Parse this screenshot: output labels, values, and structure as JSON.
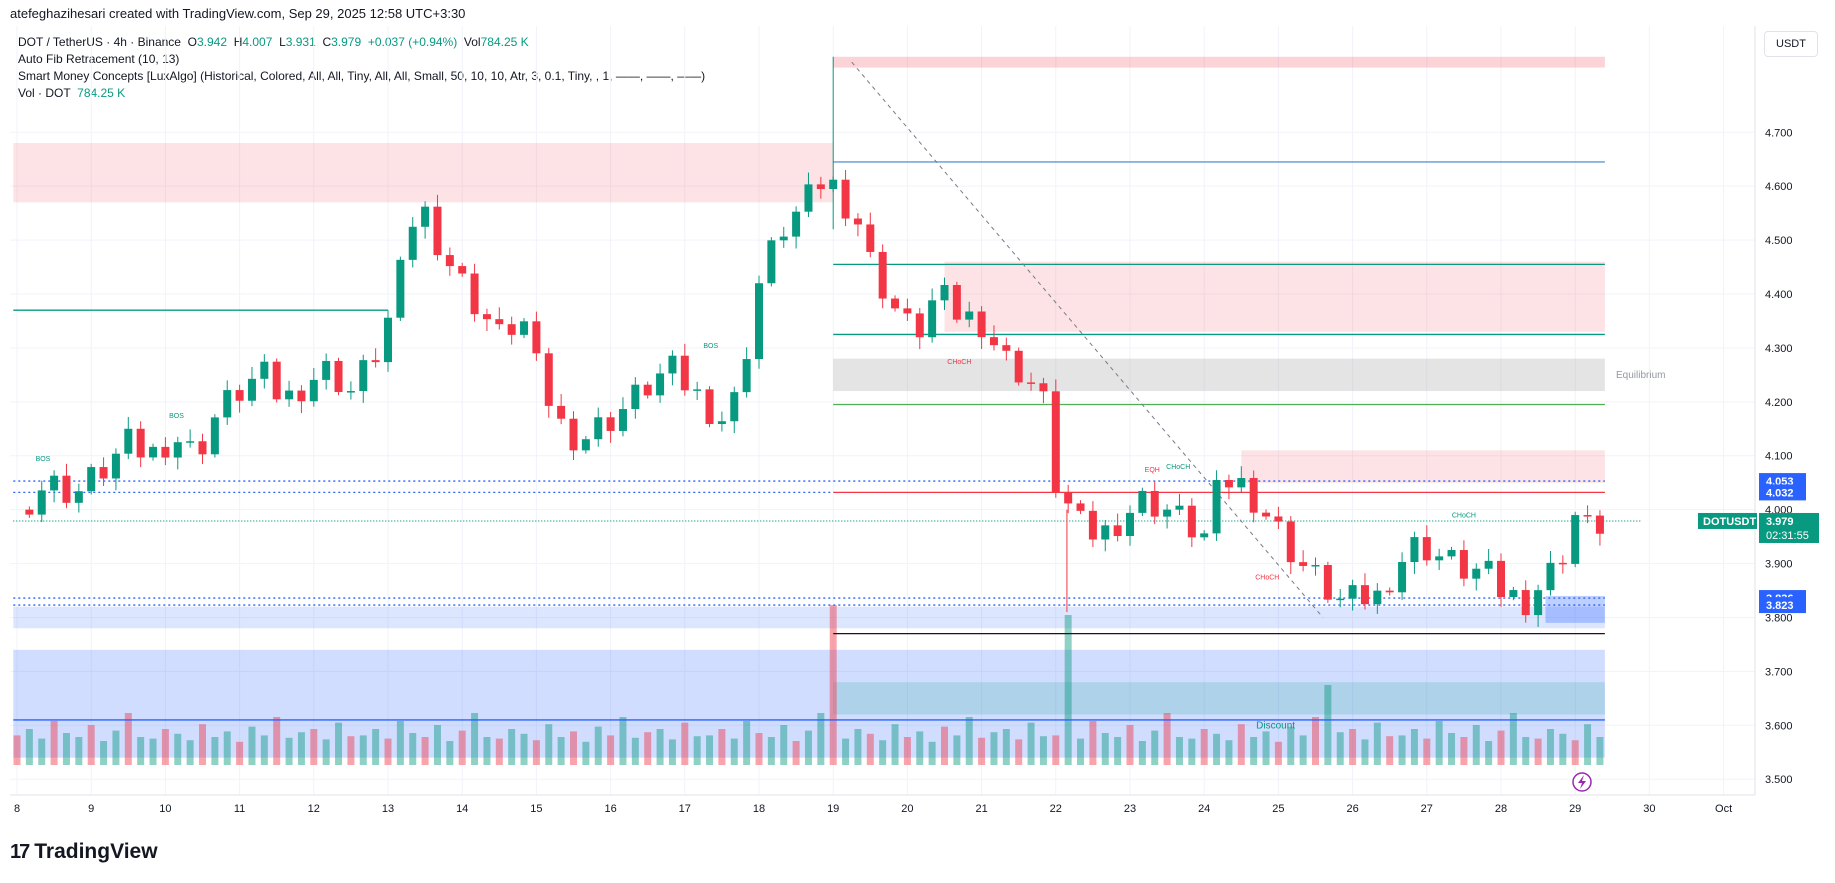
{
  "header": {
    "creator": "atefeghazihesari created with TradingView.com, Sep 29, 2025 12:58 UTC+3:30",
    "symbol": "DOT / TetherUS · 4h · Binance",
    "ohlc": {
      "o_label": "O",
      "o": "3.942",
      "h_label": "H",
      "h": "4.007",
      "l_label": "L",
      "l": "3.931",
      "c_label": "C",
      "c": "3.979",
      "change": "+0.037 (+0.94%)",
      "vol_label": "Vol",
      "vol": "784.25 K"
    },
    "indicators": [
      "Auto Fib Retracement (10, 13)",
      "Smart Money Concepts [LuxAlgo] (Historical, Colored, All, All, Tiny, All, All, Small, 50, 10, 10, Atr, 3, 0.1, Tiny, , 1, ——, ——, ——)"
    ],
    "volume_indicator": {
      "label": "Vol · DOT",
      "value": "784.25 K"
    }
  },
  "axis": {
    "currency": "USDT"
  },
  "branding": {
    "logo": "17",
    "name": "TradingView"
  },
  "colors": {
    "up": "#089981",
    "down": "#f23645",
    "blue": "#2962ff",
    "grid": "#f0f3fa"
  },
  "chart_data": {
    "type": "candlestick",
    "ylim": [
      3.48,
      4.86
    ],
    "y_ticks": [
      "3.500",
      "3.600",
      "3.700",
      "3.800",
      "3.900",
      "4.000",
      "4.100",
      "4.200",
      "4.300",
      "4.400",
      "4.500",
      "4.600",
      "4.700"
    ],
    "x_ticks": [
      {
        "label": "8",
        "day": 8
      },
      {
        "label": "9",
        "day": 9
      },
      {
        "label": "10",
        "day": 10
      },
      {
        "label": "11",
        "day": 11
      },
      {
        "label": "12",
        "day": 12
      },
      {
        "label": "13",
        "day": 13
      },
      {
        "label": "14",
        "day": 14
      },
      {
        "label": "15",
        "day": 15
      },
      {
        "label": "16",
        "day": 16
      },
      {
        "label": "17",
        "day": 17
      },
      {
        "label": "18",
        "day": 18
      },
      {
        "label": "19",
        "day": 19
      },
      {
        "label": "20",
        "day": 20
      },
      {
        "label": "21",
        "day": 21
      },
      {
        "label": "22",
        "day": 22
      },
      {
        "label": "23",
        "day": 23
      },
      {
        "label": "24",
        "day": 24
      },
      {
        "label": "25",
        "day": 25
      },
      {
        "label": "26",
        "day": 26
      },
      {
        "label": "27",
        "day": 27
      },
      {
        "label": "28",
        "day": 28
      },
      {
        "label": "29",
        "day": 29
      },
      {
        "label": "30",
        "day": 30
      },
      {
        "label": "Oct",
        "day": 31
      }
    ],
    "close_path": [
      [
        8.0,
        4.0
      ],
      [
        8.4,
        4.05
      ],
      [
        8.8,
        4.03
      ],
      [
        9.2,
        4.08
      ],
      [
        9.5,
        4.12
      ],
      [
        9.8,
        4.1
      ],
      [
        10.1,
        4.14
      ],
      [
        10.4,
        4.1
      ],
      [
        10.7,
        4.18
      ],
      [
        11.0,
        4.22
      ],
      [
        11.3,
        4.25
      ],
      [
        11.6,
        4.2
      ],
      [
        11.9,
        4.24
      ],
      [
        12.2,
        4.26
      ],
      [
        12.5,
        4.22
      ],
      [
        12.8,
        4.28
      ],
      [
        13.0,
        4.35
      ],
      [
        13.2,
        4.45
      ],
      [
        13.4,
        4.58
      ],
      [
        13.6,
        4.52
      ],
      [
        13.9,
        4.44
      ],
      [
        14.2,
        4.38
      ],
      [
        14.5,
        4.32
      ],
      [
        14.8,
        4.36
      ],
      [
        15.0,
        4.26
      ],
      [
        15.3,
        4.16
      ],
      [
        15.6,
        4.13
      ],
      [
        15.9,
        4.16
      ],
      [
        16.2,
        4.19
      ],
      [
        16.5,
        4.23
      ],
      [
        16.8,
        4.26
      ],
      [
        17.1,
        4.22
      ],
      [
        17.4,
        4.18
      ],
      [
        17.6,
        4.16
      ],
      [
        17.8,
        4.28
      ],
      [
        18.0,
        4.42
      ],
      [
        18.3,
        4.52
      ],
      [
        18.6,
        4.56
      ],
      [
        18.9,
        4.62
      ],
      [
        19.1,
        4.58
      ],
      [
        19.3,
        4.55
      ],
      [
        19.5,
        4.46
      ],
      [
        19.8,
        4.38
      ],
      [
        20.1,
        4.32
      ],
      [
        20.4,
        4.4
      ],
      [
        20.7,
        4.36
      ],
      [
        21.0,
        4.35
      ],
      [
        21.3,
        4.28
      ],
      [
        21.6,
        4.25
      ],
      [
        21.9,
        4.18
      ],
      [
        22.0,
        4.05
      ],
      [
        22.3,
        3.97
      ],
      [
        22.6,
        3.95
      ],
      [
        22.9,
        3.99
      ],
      [
        23.2,
        4.02
      ],
      [
        23.5,
        4.0
      ],
      [
        23.8,
        3.97
      ],
      [
        24.0,
        3.95
      ],
      [
        24.2,
        4.04
      ],
      [
        24.4,
        4.06
      ],
      [
        24.7,
        4.02
      ],
      [
        25.0,
        3.96
      ],
      [
        25.3,
        3.9
      ],
      [
        25.6,
        3.86
      ],
      [
        25.9,
        3.82
      ],
      [
        26.1,
        3.84
      ],
      [
        26.3,
        3.83
      ],
      [
        26.6,
        3.9
      ],
      [
        26.9,
        3.94
      ],
      [
        27.2,
        3.91
      ],
      [
        27.5,
        3.89
      ],
      [
        27.8,
        3.88
      ],
      [
        28.0,
        3.85
      ],
      [
        28.3,
        3.83
      ],
      [
        28.6,
        3.87
      ],
      [
        28.8,
        3.91
      ],
      [
        29.0,
        3.99
      ],
      [
        29.2,
        3.96
      ],
      [
        29.4,
        3.98
      ]
    ],
    "volume_ylim": [
      0,
      1
    ],
    "volume_pattern": [
      0.22,
      0.3,
      0.18,
      0.4,
      0.25,
      0.2,
      0.35,
      0.15,
      0.28,
      0.5,
      0.2,
      0.18,
      0.3,
      0.24,
      0.16,
      0.36,
      0.2,
      0.27,
      0.14,
      0.33,
      0.22,
      0.45,
      0.19,
      0.26,
      0.3,
      0.17,
      0.38,
      0.21
    ],
    "zones": [
      {
        "name": "supply-top",
        "y0": 4.84,
        "y1": 4.82,
        "x0": 19.0,
        "x1": 29.4,
        "color": "#f23645",
        "opacity": 0.22
      },
      {
        "name": "supply-left",
        "y0": 4.68,
        "y1": 4.57,
        "x0": 7.95,
        "x1": 19.0,
        "color": "#f23645",
        "opacity": 0.14
      },
      {
        "name": "supply-mid",
        "y0": 4.46,
        "y1": 4.33,
        "x0": 20.5,
        "x1": 29.4,
        "color": "#f23645",
        "opacity": 0.14
      },
      {
        "name": "equilibrium",
        "y0": 4.28,
        "y1": 4.22,
        "x0": 19.0,
        "x1": 29.4,
        "color": "#9e9e9e",
        "opacity": 0.28
      },
      {
        "name": "supply-low",
        "y0": 4.11,
        "y1": 4.05,
        "x0": 24.5,
        "x1": 29.4,
        "color": "#f23645",
        "opacity": 0.14
      },
      {
        "name": "demand-small",
        "y0": 3.84,
        "y1": 3.79,
        "x0": 28.6,
        "x1": 29.4,
        "color": "#2962ff",
        "opacity": 0.3
      },
      {
        "name": "demand-band",
        "y0": 3.82,
        "y1": 3.78,
        "x0": 7.95,
        "x1": 29.4,
        "color": "#2962ff",
        "opacity": 0.16
      },
      {
        "name": "discount",
        "y0": 3.74,
        "y1": 3.54,
        "x0": 7.95,
        "x1": 29.4,
        "color": "#2962ff",
        "opacity": 0.22
      },
      {
        "name": "discount-inner",
        "y0": 3.68,
        "y1": 3.62,
        "x0": 19.0,
        "x1": 29.4,
        "color": "#089981",
        "opacity": 0.16
      }
    ],
    "levels": [
      {
        "y": 4.645,
        "x0": 19.0,
        "x1": 29.4,
        "color": "#5b9bd5",
        "dash": ""
      },
      {
        "y": 4.455,
        "x0": 19.0,
        "x1": 29.4,
        "color": "#089981",
        "dash": ""
      },
      {
        "y": 4.325,
        "x0": 19.0,
        "x1": 29.4,
        "color": "#089981",
        "dash": ""
      },
      {
        "y": 4.195,
        "x0": 19.0,
        "x1": 29.4,
        "color": "#4caf50",
        "dash": ""
      },
      {
        "y": 4.37,
        "x0": 7.95,
        "x1": 13.0,
        "color": "#089981",
        "dash": ""
      },
      {
        "y": 4.053,
        "x0": 7.95,
        "x1": 29.4,
        "color": "#2962ff",
        "dash": "2,3"
      },
      {
        "y": 4.032,
        "x0": 19.0,
        "x1": 29.4,
        "color": "#f23645",
        "dash": ""
      },
      {
        "y": 4.032,
        "x0": 7.95,
        "x1": 19.0,
        "color": "#2962ff",
        "dash": "2,3"
      },
      {
        "y": 3.979,
        "x0": 7.95,
        "x1": 29.9,
        "color": "#089981",
        "dash": "1,2"
      },
      {
        "y": 3.836,
        "x0": 7.95,
        "x1": 29.4,
        "color": "#2962ff",
        "dash": "2,3"
      },
      {
        "y": 3.823,
        "x0": 7.95,
        "x1": 29.4,
        "color": "#2962ff",
        "dash": "2,3"
      },
      {
        "y": 3.77,
        "x0": 19.0,
        "x1": 29.4,
        "color": "#131722",
        "dash": ""
      },
      {
        "y": 3.61,
        "x0": 7.95,
        "x1": 29.4,
        "color": "#2962ff",
        "dash": ""
      }
    ],
    "annotations": [
      {
        "text": "BOS",
        "day": 8.35,
        "y": 4.09,
        "color": "#089981"
      },
      {
        "text": "BOS",
        "day": 10.15,
        "y": 4.17,
        "color": "#089981"
      },
      {
        "text": "BOS",
        "day": 17.35,
        "y": 4.3,
        "color": "#089981"
      },
      {
        "text": "CHoCH",
        "day": 20.7,
        "y": 4.27,
        "color": "#f23645"
      },
      {
        "text": "EQH",
        "day": 23.3,
        "y": 4.07,
        "color": "#f23645"
      },
      {
        "text": "CHoCH",
        "day": 23.65,
        "y": 4.075,
        "color": "#089981"
      },
      {
        "text": "CHoCH",
        "day": 24.85,
        "y": 3.87,
        "color": "#f23645"
      },
      {
        "text": "CHoCH",
        "day": 27.5,
        "y": 3.985,
        "color": "#089981"
      }
    ],
    "zone_labels": [
      {
        "text": "Equilibrium",
        "day": 29.55,
        "y": 4.25,
        "color": "#9598a1"
      },
      {
        "text": "Discount",
        "day": 24.7,
        "y": 3.6,
        "color": "#089981"
      }
    ],
    "price_labels": [
      {
        "text": "4.053",
        "y": 4.053,
        "color": "#2962ff"
      },
      {
        "text": "4.032",
        "y": 4.032,
        "color": "#2962ff"
      },
      {
        "text": "3.836",
        "y": 3.836,
        "color": "#2962ff"
      },
      {
        "text": "3.823",
        "y": 3.823,
        "color": "#2962ff"
      }
    ],
    "current": {
      "symbol": "DOTUSDT",
      "price": "3.979",
      "countdown": "02:31:55",
      "y": 3.979
    }
  }
}
